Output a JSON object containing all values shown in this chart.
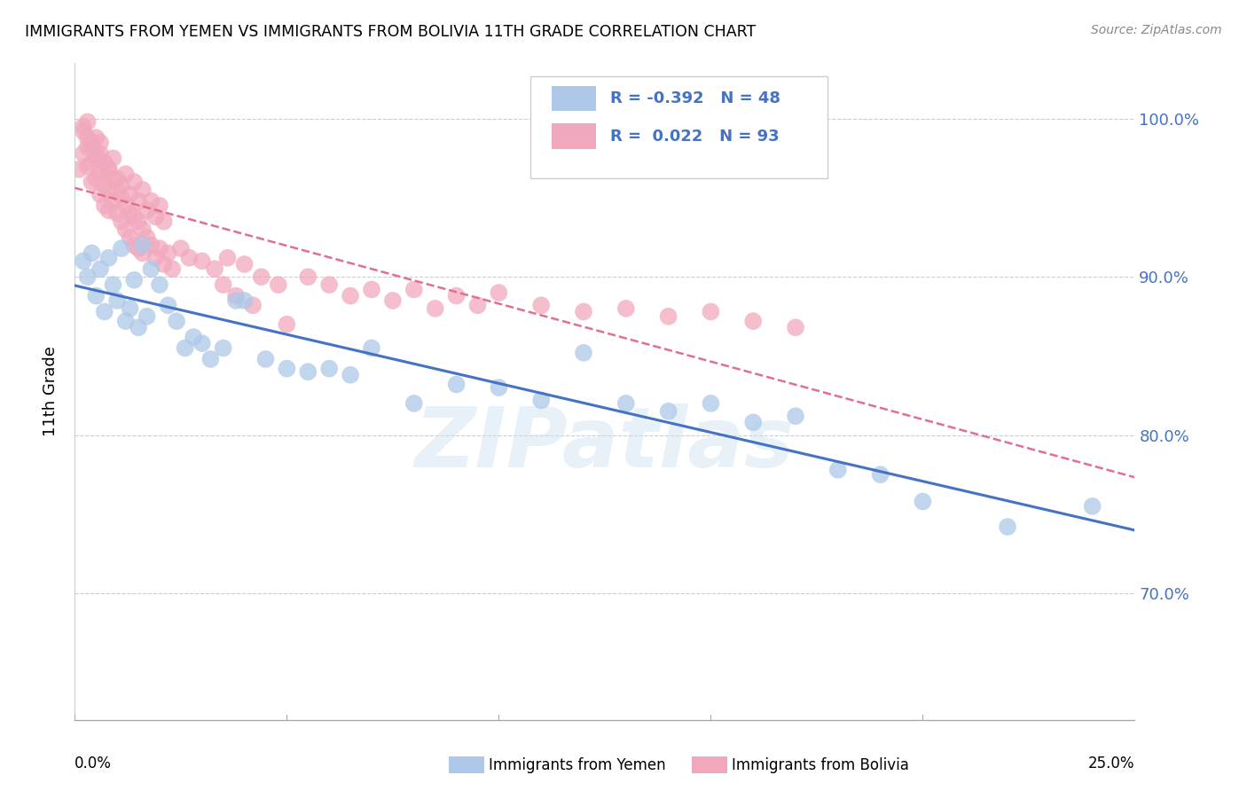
{
  "title": "IMMIGRANTS FROM YEMEN VS IMMIGRANTS FROM BOLIVIA 11TH GRADE CORRELATION CHART",
  "source": "Source: ZipAtlas.com",
  "ylabel": "11th Grade",
  "y_ticks": [
    0.7,
    0.8,
    0.9,
    1.0
  ],
  "y_tick_labels": [
    "70.0%",
    "80.0%",
    "90.0%",
    "100.0%"
  ],
  "x_min": 0.0,
  "x_max": 0.25,
  "y_min": 0.62,
  "y_max": 1.035,
  "legend_r_yemen": "-0.392",
  "legend_n_yemen": "48",
  "legend_r_bolivia": " 0.022",
  "legend_n_bolivia": "93",
  "color_yemen": "#adc8e8",
  "color_bolivia": "#f2a8bc",
  "line_color_yemen": "#4472c4",
  "line_color_bolivia": "#e07090",
  "watermark": "ZIPatlas",
  "yemen_x": [
    0.002,
    0.003,
    0.004,
    0.005,
    0.006,
    0.007,
    0.008,
    0.009,
    0.01,
    0.011,
    0.012,
    0.013,
    0.014,
    0.015,
    0.016,
    0.017,
    0.018,
    0.02,
    0.022,
    0.024,
    0.026,
    0.028,
    0.03,
    0.032,
    0.035,
    0.038,
    0.04,
    0.045,
    0.05,
    0.055,
    0.06,
    0.065,
    0.07,
    0.08,
    0.09,
    0.1,
    0.11,
    0.12,
    0.13,
    0.14,
    0.15,
    0.16,
    0.17,
    0.18,
    0.19,
    0.2,
    0.22,
    0.24
  ],
  "yemen_y": [
    0.91,
    0.9,
    0.915,
    0.888,
    0.905,
    0.878,
    0.912,
    0.895,
    0.885,
    0.918,
    0.872,
    0.88,
    0.898,
    0.868,
    0.92,
    0.875,
    0.905,
    0.895,
    0.882,
    0.872,
    0.855,
    0.862,
    0.858,
    0.848,
    0.855,
    0.885,
    0.885,
    0.848,
    0.842,
    0.84,
    0.842,
    0.838,
    0.855,
    0.82,
    0.832,
    0.83,
    0.822,
    0.852,
    0.82,
    0.815,
    0.82,
    0.808,
    0.812,
    0.778,
    0.775,
    0.758,
    0.742,
    0.755
  ],
  "bolivia_x": [
    0.001,
    0.002,
    0.002,
    0.003,
    0.003,
    0.003,
    0.004,
    0.004,
    0.004,
    0.005,
    0.005,
    0.005,
    0.006,
    0.006,
    0.006,
    0.007,
    0.007,
    0.007,
    0.008,
    0.008,
    0.008,
    0.009,
    0.009,
    0.01,
    0.01,
    0.011,
    0.011,
    0.012,
    0.012,
    0.013,
    0.013,
    0.014,
    0.014,
    0.015,
    0.015,
    0.016,
    0.016,
    0.017,
    0.018,
    0.019,
    0.02,
    0.021,
    0.022,
    0.023,
    0.025,
    0.027,
    0.03,
    0.033,
    0.036,
    0.04,
    0.044,
    0.048,
    0.055,
    0.06,
    0.065,
    0.07,
    0.075,
    0.08,
    0.085,
    0.09,
    0.095,
    0.1,
    0.11,
    0.12,
    0.13,
    0.14,
    0.15,
    0.16,
    0.17,
    0.002,
    0.003,
    0.004,
    0.005,
    0.006,
    0.007,
    0.008,
    0.009,
    0.01,
    0.011,
    0.012,
    0.013,
    0.014,
    0.015,
    0.016,
    0.017,
    0.018,
    0.019,
    0.02,
    0.021,
    0.035,
    0.038,
    0.042,
    0.05
  ],
  "bolivia_y": [
    0.968,
    0.978,
    0.995,
    0.982,
    0.97,
    0.998,
    0.985,
    0.972,
    0.96,
    0.988,
    0.975,
    0.962,
    0.978,
    0.965,
    0.952,
    0.972,
    0.958,
    0.945,
    0.968,
    0.955,
    0.942,
    0.962,
    0.948,
    0.955,
    0.94,
    0.95,
    0.935,
    0.945,
    0.93,
    0.94,
    0.925,
    0.938,
    0.92,
    0.935,
    0.918,
    0.93,
    0.915,
    0.925,
    0.92,
    0.912,
    0.918,
    0.908,
    0.915,
    0.905,
    0.918,
    0.912,
    0.91,
    0.905,
    0.912,
    0.908,
    0.9,
    0.895,
    0.9,
    0.895,
    0.888,
    0.892,
    0.885,
    0.892,
    0.88,
    0.888,
    0.882,
    0.89,
    0.882,
    0.878,
    0.88,
    0.875,
    0.878,
    0.872,
    0.868,
    0.992,
    0.988,
    0.982,
    0.978,
    0.985,
    0.972,
    0.968,
    0.975,
    0.962,
    0.958,
    0.965,
    0.952,
    0.96,
    0.948,
    0.955,
    0.942,
    0.948,
    0.938,
    0.945,
    0.935,
    0.895,
    0.888,
    0.882,
    0.87
  ]
}
